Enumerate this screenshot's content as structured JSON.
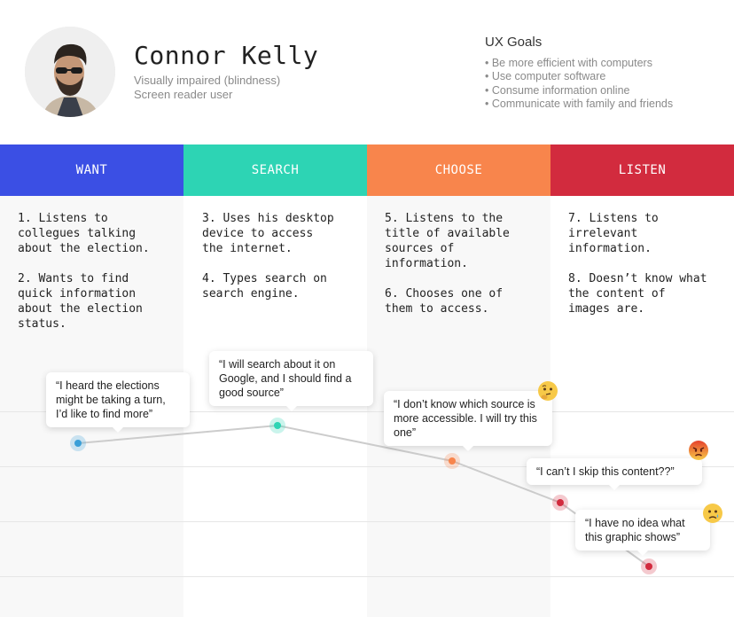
{
  "persona": {
    "name": "Connor Kelly",
    "line1": "Visually impaired (blindness)",
    "line2": "Screen reader user"
  },
  "ux_goals": {
    "title": "UX Goals",
    "items": [
      "• Be more efficient with computers",
      "• Use computer software",
      "• Consume information online",
      "• Communicate with family and friends"
    ]
  },
  "stages": [
    {
      "label": "WANT",
      "color": "#3b4fe4",
      "steps": [
        "1. Listens to\ncollegues talking\nabout the election.",
        "2. Wants to find\nquick information\nabout the election\nstatus."
      ]
    },
    {
      "label": "SEARCH",
      "color": "#2dd4b4",
      "steps": [
        "3. Uses his desktop\ndevice to access\nthe internet.",
        "4. Types search on\nsearch engine."
      ]
    },
    {
      "label": "CHOOSE",
      "color": "#f8854c",
      "steps": [
        "5. Listens to the\ntitle of available\nsources of\ninformation.",
        "6. Chooses one of\nthem to access."
      ]
    },
    {
      "label": "LISTEN",
      "color": "#d22b3e",
      "steps": [
        "7. Listens to\nirrelevant\ninformation.",
        "8. Doesn’t know what\nthe content of\nimages are."
      ]
    }
  ],
  "quotes": [
    "“I heard the elections might be taking a turn, I’d like to find more”",
    "“I will search about it on Google, and I should find a good source”",
    "“I don’t know which source is more accessible. I will try this one”",
    "“I can’t I skip this content??”",
    "“I have no idea what this graphic shows”"
  ],
  "emotions": [
    "thinking-face-icon",
    "angry-face-icon",
    "sad-face-icon"
  ],
  "chart_data": {
    "type": "line",
    "points": [
      {
        "stage": "WANT",
        "color": "#3a9fd8"
      },
      {
        "stage": "SEARCH",
        "color": "#2dd4b4"
      },
      {
        "stage": "CHOOSE",
        "color": "#f8854c"
      },
      {
        "stage": "LISTEN",
        "color": "#d22b3e"
      },
      {
        "stage": "LISTEN",
        "color": "#d22b3e"
      }
    ],
    "line_color": "#cccccc",
    "grid": true
  }
}
